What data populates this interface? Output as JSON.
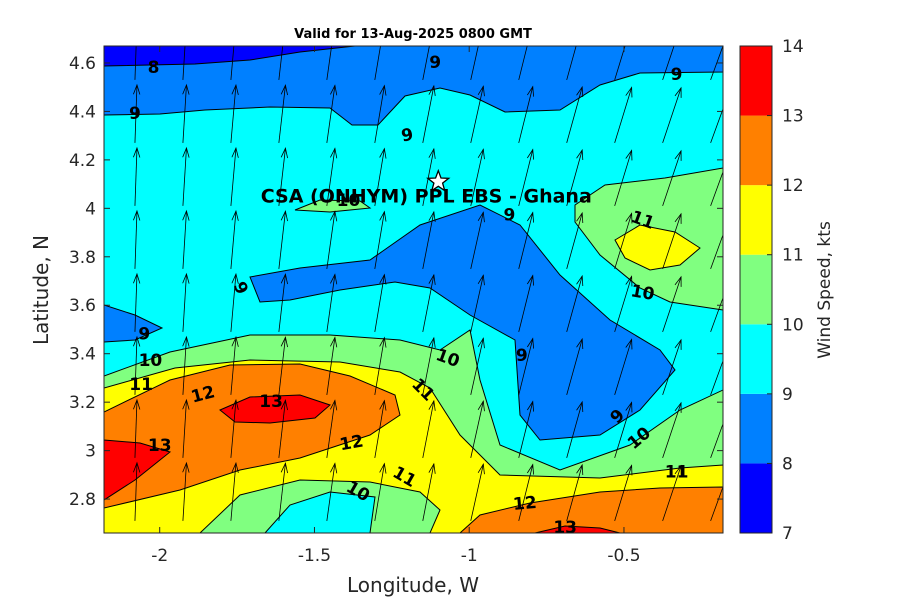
{
  "chart_data": {
    "type": "contour",
    "title": "Valid for 13-Aug-2025 0800 GMT",
    "xlabel": "Longitude, W",
    "ylabel": "Latitude, N",
    "xlim": [
      -2.18,
      -0.18
    ],
    "ylim": [
      2.66,
      4.67
    ],
    "x_ticks": [
      -2,
      -1.5,
      -1,
      -0.5
    ],
    "x_tick_labels": [
      "-2",
      "-1.5",
      "-1",
      "-0.5"
    ],
    "y_ticks": [
      2.8,
      3.0,
      3.2,
      3.4,
      3.6,
      3.8,
      4.0,
      4.2,
      4.4,
      4.6
    ],
    "y_tick_labels": [
      "2.8",
      "3",
      "3.2",
      "3.4",
      "3.6",
      "3.8",
      "4",
      "4.2",
      "4.4",
      "4.6"
    ],
    "colorbar": {
      "label": "Wind Speed, kts",
      "min": 7,
      "max": 14,
      "ticks": [
        7,
        8,
        9,
        10,
        11,
        12,
        13,
        14
      ],
      "bands": [
        {
          "from": 7,
          "to": 8,
          "color": "#0000ff"
        },
        {
          "from": 8,
          "to": 9,
          "color": "#0080ff"
        },
        {
          "from": 9,
          "to": 10,
          "color": "#00ffff"
        },
        {
          "from": 10,
          "to": 11,
          "color": "#80ff80"
        },
        {
          "from": 11,
          "to": 12,
          "color": "#ffff00"
        },
        {
          "from": 12,
          "to": 13,
          "color": "#ff8000"
        },
        {
          "from": 13,
          "to": 14,
          "color": "#ff0000"
        }
      ]
    },
    "contour_labels": [
      {
        "text": "8",
        "lon": -2.02,
        "lat": 4.58,
        "rot": 0
      },
      {
        "text": "9",
        "lon": -1.11,
        "lat": 4.6,
        "rot": 0
      },
      {
        "text": "9",
        "lon": -0.33,
        "lat": 4.55,
        "rot": 0
      },
      {
        "text": "9",
        "lon": -2.08,
        "lat": 4.39,
        "rot": 0
      },
      {
        "text": "9",
        "lon": -1.2,
        "lat": 4.3,
        "rot": -10
      },
      {
        "text": "10",
        "lon": -1.39,
        "lat": 4.03,
        "rot": 0
      },
      {
        "text": "9",
        "lon": -0.87,
        "lat": 3.97,
        "rot": 0
      },
      {
        "text": "11",
        "lon": -0.44,
        "lat": 3.95,
        "rot": 20
      },
      {
        "text": "9",
        "lon": -1.74,
        "lat": 3.67,
        "rot": 65
      },
      {
        "text": "10",
        "lon": -0.44,
        "lat": 3.65,
        "rot": 10
      },
      {
        "text": "9",
        "lon": -2.05,
        "lat": 3.48,
        "rot": 0
      },
      {
        "text": "10",
        "lon": -2.03,
        "lat": 3.37,
        "rot": 0
      },
      {
        "text": "10",
        "lon": -1.07,
        "lat": 3.38,
        "rot": 20
      },
      {
        "text": "9",
        "lon": -0.83,
        "lat": 3.39,
        "rot": 0
      },
      {
        "text": "11",
        "lon": -2.06,
        "lat": 3.27,
        "rot": 0
      },
      {
        "text": "12",
        "lon": -1.86,
        "lat": 3.23,
        "rot": -15
      },
      {
        "text": "11",
        "lon": -1.15,
        "lat": 3.25,
        "rot": 45
      },
      {
        "text": "13",
        "lon": -1.64,
        "lat": 3.2,
        "rot": 0
      },
      {
        "text": "9",
        "lon": -0.52,
        "lat": 3.14,
        "rot": -45
      },
      {
        "text": "10",
        "lon": -0.45,
        "lat": 3.05,
        "rot": -40
      },
      {
        "text": "12",
        "lon": -1.38,
        "lat": 3.03,
        "rot": -10
      },
      {
        "text": "13",
        "lon": -2.0,
        "lat": 3.02,
        "rot": 0
      },
      {
        "text": "11",
        "lon": -1.21,
        "lat": 2.89,
        "rot": 30
      },
      {
        "text": "11",
        "lon": -0.33,
        "lat": 2.91,
        "rot": 0
      },
      {
        "text": "10",
        "lon": -1.36,
        "lat": 2.83,
        "rot": 30
      },
      {
        "text": "12",
        "lon": -0.82,
        "lat": 2.78,
        "rot": -5
      },
      {
        "text": "13",
        "lon": -0.69,
        "lat": 2.68,
        "rot": 0
      }
    ],
    "site": {
      "label": "CSA (ONHYM) PPL EBS  - Ghana",
      "marker": "star",
      "lon": -1.1,
      "lat": 4.11
    },
    "wind_vectors": {
      "note": "arrows point roughly north, veering to north-northeast in the east"
    }
  }
}
